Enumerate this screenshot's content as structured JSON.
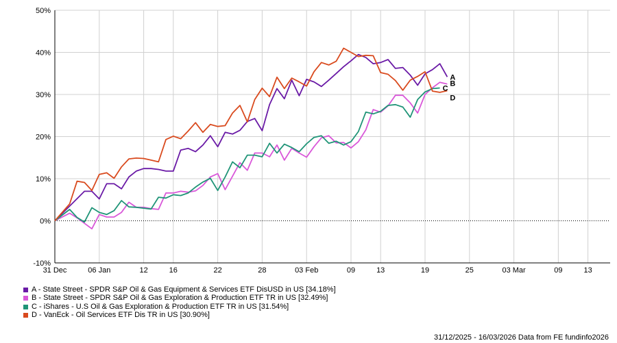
{
  "chart_data": {
    "type": "line",
    "ylim": [
      -10,
      50
    ],
    "y_ticks": [
      -10,
      0,
      10,
      20,
      30,
      40,
      50
    ],
    "y_tick_labels": [
      "-10%",
      "0%",
      "10%",
      "20%",
      "30%",
      "40%",
      "50%"
    ],
    "x_tick_labels": [
      {
        "day": 0,
        "label": "31 Dec"
      },
      {
        "day": 6,
        "label": "06 Jan"
      },
      {
        "day": 12,
        "label": "12"
      },
      {
        "day": 16,
        "label": "16"
      },
      {
        "day": 22,
        "label": "22"
      },
      {
        "day": 28,
        "label": "28"
      },
      {
        "day": 34,
        "label": "03 Feb"
      },
      {
        "day": 40,
        "label": "09"
      },
      {
        "day": 44,
        "label": "13"
      },
      {
        "day": 50,
        "label": "19"
      },
      {
        "day": 56,
        "label": "25"
      },
      {
        "day": 62,
        "label": "03 Mar"
      },
      {
        "day": 68,
        "label": "09"
      },
      {
        "day": 72,
        "label": "13"
      }
    ],
    "x_range": [
      0,
      75
    ],
    "grid": true,
    "zero_line": "dotted",
    "series": [
      {
        "name": "A - State Street - SPDR S&P Oil & Gas Equipment & Services ETF DisUSD in US [34.18%]",
        "label": "A",
        "color": "#6a1aa6",
        "points": [
          [
            0,
            0
          ],
          [
            2,
            3.5
          ],
          [
            4,
            7
          ],
          [
            5,
            7
          ],
          [
            6,
            5.2
          ],
          [
            7,
            8.8
          ],
          [
            8,
            8.8
          ],
          [
            9,
            7.6
          ],
          [
            10,
            10.4
          ],
          [
            11,
            11.8
          ],
          [
            12,
            12.4
          ],
          [
            13,
            12.4
          ],
          [
            14,
            12.2
          ],
          [
            15,
            11.8
          ],
          [
            16,
            11.8
          ],
          [
            17,
            16.8
          ],
          [
            18,
            17.2
          ],
          [
            19,
            16.4
          ],
          [
            20,
            18
          ],
          [
            21,
            20.2
          ],
          [
            22,
            17.6
          ],
          [
            23,
            21
          ],
          [
            24,
            20.6
          ],
          [
            25,
            21.5
          ],
          [
            26,
            23.6
          ],
          [
            27,
            24.3
          ],
          [
            28,
            21.4
          ],
          [
            29,
            27.6
          ],
          [
            30,
            31.4
          ],
          [
            31,
            29
          ],
          [
            32,
            33.4
          ],
          [
            33,
            29.7
          ],
          [
            34,
            33.6
          ],
          [
            35,
            33
          ],
          [
            36,
            31.9
          ],
          [
            37,
            33.4
          ],
          [
            38,
            35
          ],
          [
            39,
            36.6
          ],
          [
            40,
            38
          ],
          [
            41,
            39.5
          ],
          [
            42,
            38.8
          ],
          [
            43,
            37.3
          ],
          [
            44,
            37.6
          ],
          [
            45,
            38.3
          ],
          [
            46,
            36.2
          ],
          [
            47,
            36.4
          ],
          [
            48,
            34.6
          ],
          [
            49,
            32.2
          ],
          [
            50,
            34.9
          ],
          [
            51,
            35.9
          ],
          [
            52,
            37.3
          ],
          [
            53,
            34.18
          ]
        ]
      },
      {
        "name": "B - State Street - SPDR S&P Oil & Gas Exploration & Production ETF TR in US [32.49%]",
        "label": "B",
        "color": "#d957d9",
        "points": [
          [
            0,
            0
          ],
          [
            2,
            1.8
          ],
          [
            3,
            0.7
          ],
          [
            4,
            -0.6
          ],
          [
            5,
            -1.9
          ],
          [
            6,
            1.5
          ],
          [
            7,
            0.9
          ],
          [
            8,
            0.9
          ],
          [
            9,
            2
          ],
          [
            10,
            4.4
          ],
          [
            11,
            3.2
          ],
          [
            12,
            3.2
          ],
          [
            13,
            2.9
          ],
          [
            14,
            2.7
          ],
          [
            15,
            6.6
          ],
          [
            16,
            6.6
          ],
          [
            17,
            7
          ],
          [
            18,
            6.8
          ],
          [
            19,
            7.1
          ],
          [
            20,
            8.4
          ],
          [
            21,
            10.4
          ],
          [
            22,
            11.2
          ],
          [
            23,
            7.4
          ],
          [
            24,
            10.6
          ],
          [
            25,
            13.8
          ],
          [
            26,
            12
          ],
          [
            27,
            16.1
          ],
          [
            28,
            16.1
          ],
          [
            29,
            15.2
          ],
          [
            30,
            18
          ],
          [
            31,
            14.4
          ],
          [
            32,
            17.2
          ],
          [
            33,
            16.1
          ],
          [
            34,
            15.1
          ],
          [
            35,
            17.6
          ],
          [
            36,
            19.7
          ],
          [
            37,
            20.2
          ],
          [
            38,
            18.5
          ],
          [
            39,
            18.6
          ],
          [
            40,
            17.3
          ],
          [
            41,
            18.8
          ],
          [
            42,
            21.6
          ],
          [
            43,
            26.4
          ],
          [
            44,
            25.8
          ],
          [
            45,
            27.3
          ],
          [
            46,
            29.8
          ],
          [
            47,
            29.8
          ],
          [
            48,
            28
          ],
          [
            49,
            25.6
          ],
          [
            50,
            30
          ],
          [
            51,
            31.6
          ],
          [
            52,
            32.9
          ],
          [
            53,
            32.49
          ]
        ]
      },
      {
        "name": "C - iShares - U.S Oil & Gas Exploration & Production ETF TR in US [31.54%]",
        "label": "C",
        "color": "#1f9477",
        "points": [
          [
            0,
            0
          ],
          [
            2,
            2.7
          ],
          [
            3,
            0.8
          ],
          [
            4,
            -0.3
          ],
          [
            5,
            3.1
          ],
          [
            6,
            2
          ],
          [
            7,
            1.5
          ],
          [
            8,
            2.4
          ],
          [
            9,
            4.8
          ],
          [
            10,
            3.3
          ],
          [
            11,
            3.2
          ],
          [
            12,
            3
          ],
          [
            13,
            2.8
          ],
          [
            14,
            5.6
          ],
          [
            15,
            5.4
          ],
          [
            16,
            6.2
          ],
          [
            17,
            6
          ],
          [
            18,
            6.6
          ],
          [
            19,
            8
          ],
          [
            20,
            9.2
          ],
          [
            21,
            10.1
          ],
          [
            22,
            7.2
          ],
          [
            23,
            10.4
          ],
          [
            24,
            14
          ],
          [
            25,
            12.6
          ],
          [
            26,
            15.6
          ],
          [
            27,
            15.6
          ],
          [
            28,
            15.2
          ],
          [
            29,
            18.4
          ],
          [
            30,
            16.1
          ],
          [
            31,
            18.2
          ],
          [
            32,
            17.4
          ],
          [
            33,
            16.4
          ],
          [
            34,
            18.3
          ],
          [
            35,
            19.8
          ],
          [
            36,
            20.2
          ],
          [
            37,
            18.4
          ],
          [
            38,
            18.9
          ],
          [
            39,
            18
          ],
          [
            40,
            18.8
          ],
          [
            41,
            21.2
          ],
          [
            42,
            25.8
          ],
          [
            43,
            25.4
          ],
          [
            44,
            26
          ],
          [
            45,
            27.4
          ],
          [
            46,
            27.6
          ],
          [
            47,
            27
          ],
          [
            48,
            24.6
          ],
          [
            49,
            28.8
          ],
          [
            50,
            30.6
          ],
          [
            51,
            31.4
          ],
          [
            52,
            31.54
          ]
        ]
      },
      {
        "name": "D - VanEck - Oil Services ETF Dis TR in US [30.90%]",
        "label": "D",
        "color": "#d94a1e",
        "points": [
          [
            0,
            0
          ],
          [
            2,
            4
          ],
          [
            3,
            9.4
          ],
          [
            4,
            9.1
          ],
          [
            5,
            7.2
          ],
          [
            6,
            11
          ],
          [
            7,
            11.4
          ],
          [
            8,
            10.1
          ],
          [
            9,
            12.8
          ],
          [
            10,
            14.7
          ],
          [
            11,
            14.9
          ],
          [
            12,
            14.8
          ],
          [
            13,
            14.4
          ],
          [
            14,
            14
          ],
          [
            15,
            19.3
          ],
          [
            16,
            20.1
          ],
          [
            17,
            19.5
          ],
          [
            18,
            21.3
          ],
          [
            19,
            23.3
          ],
          [
            20,
            21
          ],
          [
            21,
            22.9
          ],
          [
            22,
            22.4
          ],
          [
            23,
            22.6
          ],
          [
            24,
            25.6
          ],
          [
            25,
            27.4
          ],
          [
            26,
            23.5
          ],
          [
            27,
            28.8
          ],
          [
            28,
            31.5
          ],
          [
            29,
            29.5
          ],
          [
            30,
            34.1
          ],
          [
            31,
            31.4
          ],
          [
            32,
            33.9
          ],
          [
            33,
            33
          ],
          [
            34,
            32
          ],
          [
            35,
            35.4
          ],
          [
            36,
            37.6
          ],
          [
            37,
            37
          ],
          [
            38,
            37.9
          ],
          [
            39,
            41
          ],
          [
            40,
            40
          ],
          [
            41,
            39
          ],
          [
            42,
            39.3
          ],
          [
            43,
            39.2
          ],
          [
            44,
            35.2
          ],
          [
            45,
            34.8
          ],
          [
            46,
            33.3
          ],
          [
            47,
            31
          ],
          [
            48,
            33.4
          ],
          [
            49,
            34.3
          ],
          [
            50,
            35.4
          ],
          [
            51,
            30.8
          ],
          [
            52,
            30.5
          ],
          [
            53,
            30.9
          ]
        ]
      }
    ]
  },
  "legend": [
    {
      "text": "A - State Street - SPDR S&P Oil & Gas Equipment & Services ETF DisUSD in US [34.18%]",
      "color": "#6a1aa6"
    },
    {
      "text": "B - State Street - SPDR S&P Oil & Gas Exploration & Production ETF TR in US [32.49%]",
      "color": "#d957d9"
    },
    {
      "text": "C - iShares - U.S Oil & Gas Exploration & Production ETF TR in US [31.54%]",
      "color": "#1f9477"
    },
    {
      "text": "D - VanEck - Oil Services ETF Dis TR in US [30.90%]",
      "color": "#d94a1e"
    }
  ],
  "footer": "31/12/2025 - 16/03/2026 Data from FE fundinfo2026"
}
